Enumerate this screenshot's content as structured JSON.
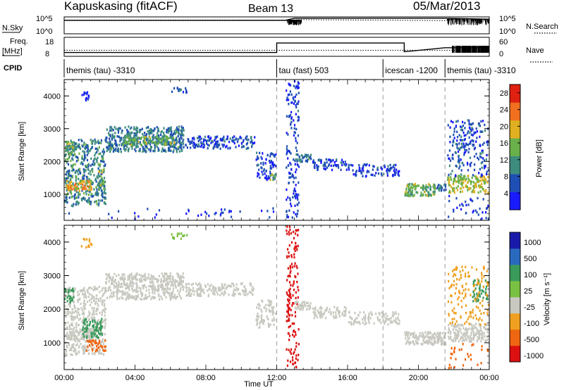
{
  "header": {
    "station": "Kapuskasing (fitACF)",
    "beam": "Beam 13",
    "date": "05/Mar/2013"
  },
  "noise_panel": {
    "left_label": "N.Sky",
    "right_label": "N.Search",
    "left_ticks": [
      "10^5",
      "10^0"
    ],
    "right_ticks": [
      "10^5",
      "10^0"
    ],
    "series": [
      {
        "name": "N.Sky",
        "style": "solid",
        "x": [
          0,
          0.25,
          12.5,
          13,
          21.5,
          24
        ],
        "y": [
          4,
          4,
          4,
          4.6,
          4.6,
          4.3
        ]
      },
      {
        "name": "N.Search",
        "style": "dotted",
        "x": [
          0,
          12.5,
          13.2,
          21.5,
          22,
          24
        ],
        "y": [
          3.9,
          3.9,
          4.2,
          3.9,
          4.4,
          4.4
        ]
      }
    ]
  },
  "freq_panel": {
    "left_label_1": "Freq.",
    "left_label_2": "[MHz]",
    "right_label": "Nave",
    "left_ticks": [
      "18",
      "8"
    ],
    "right_ticks": [
      "60",
      "0"
    ],
    "series": [
      {
        "name": "Freq.",
        "style": "solid",
        "x": [
          0,
          12,
          12,
          19.2,
          19.2,
          21.5,
          24
        ],
        "y": [
          10,
          10,
          15,
          15,
          10.4,
          12.5,
          12.5
        ]
      },
      {
        "name": "Nave",
        "style": "dotted",
        "x": [
          0,
          12,
          21.5,
          24
        ],
        "y": [
          11.2,
          11.2,
          11.2,
          11.2
        ]
      }
    ]
  },
  "cpid": {
    "label": "CPID",
    "segments": [
      {
        "start": 0,
        "end": 12,
        "label": "themis (tau) -3310"
      },
      {
        "start": 12,
        "end": 18,
        "label": "tau (fast) 503"
      },
      {
        "start": 18,
        "end": 21.5,
        "label": "icescan -1200"
      },
      {
        "start": 21.5,
        "end": 24,
        "label": "themis (tau) -3310"
      }
    ]
  },
  "chart_data": [
    {
      "type": "heatmap",
      "name": "power",
      "ylabel": "Slant Range [km]",
      "ylim": [
        200,
        4500
      ],
      "xlim": [
        0,
        24
      ],
      "yticks": [
        "1000",
        "2000",
        "3000",
        "4000"
      ],
      "colorbar": {
        "label": "Power [dB]",
        "range": [
          0,
          30
        ],
        "ticks": [
          "4",
          "8",
          "12",
          "16",
          "20",
          "24",
          "28"
        ]
      },
      "regions": [
        {
          "x0": 0.0,
          "x1": 2.4,
          "y0": 600,
          "y1": 2700,
          "value": 10,
          "density": 0.55
        },
        {
          "x0": 0.1,
          "x1": 1.6,
          "y0": 1050,
          "y1": 1450,
          "value": 20,
          "density": 0.85
        },
        {
          "x0": 0.0,
          "x1": 0.6,
          "y0": 2150,
          "y1": 2650,
          "value": 14,
          "density": 0.7
        },
        {
          "x0": 1.9,
          "x1": 2.3,
          "y0": 1100,
          "y1": 1800,
          "value": 14,
          "density": 0.7
        },
        {
          "x0": 2.3,
          "x1": 6.8,
          "y0": 2250,
          "y1": 3100,
          "value": 9,
          "density": 0.75
        },
        {
          "x0": 3.3,
          "x1": 6.3,
          "y0": 2450,
          "y1": 2800,
          "value": 14,
          "density": 0.8
        },
        {
          "x0": 6.8,
          "x1": 10.8,
          "y0": 2350,
          "y1": 2800,
          "value": 6,
          "density": 0.55
        },
        {
          "x0": 10.8,
          "x1": 12.0,
          "y0": 1400,
          "y1": 2300,
          "value": 5,
          "density": 0.45
        },
        {
          "x0": 11.6,
          "x1": 12.0,
          "y0": 1400,
          "y1": 1650,
          "value": 14,
          "density": 0.7
        },
        {
          "x0": 0.9,
          "x1": 1.6,
          "y0": 3800,
          "y1": 4150,
          "value": 4,
          "density": 0.35
        },
        {
          "x0": 6.0,
          "x1": 7.0,
          "y0": 4050,
          "y1": 4300,
          "value": 5,
          "density": 0.4
        },
        {
          "x0": 12.5,
          "x1": 13.3,
          "y0": 200,
          "y1": 4500,
          "value": 5,
          "density": 0.28
        },
        {
          "x0": 13.0,
          "x1": 14.0,
          "y0": 1950,
          "y1": 2250,
          "value": 9,
          "density": 0.8
        },
        {
          "x0": 14.0,
          "x1": 16.0,
          "y0": 1700,
          "y1": 2100,
          "value": 5,
          "density": 0.55
        },
        {
          "x0": 16.0,
          "x1": 19.0,
          "y0": 1500,
          "y1": 1950,
          "value": 5,
          "density": 0.45
        },
        {
          "x0": 19.2,
          "x1": 21.0,
          "y0": 900,
          "y1": 1350,
          "value": 14,
          "density": 0.9
        },
        {
          "x0": 21.0,
          "x1": 21.6,
          "y0": 1050,
          "y1": 1350,
          "value": 9,
          "density": 0.8
        },
        {
          "x0": 21.6,
          "x1": 24.0,
          "y0": 1000,
          "y1": 1600,
          "value": 17,
          "density": 0.7
        },
        {
          "x0": 21.6,
          "x1": 24.0,
          "y0": 1500,
          "y1": 3300,
          "value": 6,
          "density": 0.3
        },
        {
          "x0": 21.6,
          "x1": 24.0,
          "y0": 200,
          "y1": 1000,
          "value": 4,
          "density": 0.12
        },
        {
          "x0": 0.0,
          "x1": 12.0,
          "y0": 200,
          "y1": 600,
          "value": 4,
          "density": 0.05
        }
      ]
    },
    {
      "type": "heatmap",
      "name": "velocity",
      "ylabel": "Slant Range [km]",
      "xlabel": "Time UT",
      "ylim": [
        200,
        4500
      ],
      "xlim": [
        0,
        24
      ],
      "yticks": [
        "1000",
        "2000",
        "3000",
        "4000"
      ],
      "xticks": [
        "00:00",
        "04:00",
        "08:00",
        "12:00",
        "16:00",
        "20:00",
        "00:00"
      ],
      "colorbar": {
        "label": "Velocity [m s⁻¹]",
        "ticks": [
          "1000",
          "500",
          "100",
          "25",
          "-25",
          "-100",
          "-500",
          "-1000"
        ]
      },
      "regions": [
        {
          "x0": 0.0,
          "x1": 2.4,
          "y0": 600,
          "y1": 2700,
          "value": 0,
          "density": 0.5
        },
        {
          "x0": 0.1,
          "x1": 1.6,
          "y0": 1050,
          "y1": 1450,
          "value": 0,
          "density": 0.8
        },
        {
          "x0": 0.0,
          "x1": 0.6,
          "y0": 2150,
          "y1": 2650,
          "value": 150,
          "density": 0.6
        },
        {
          "x0": 1.0,
          "x1": 2.2,
          "y0": 1100,
          "y1": 1750,
          "value": 200,
          "density": 0.6
        },
        {
          "x0": 1.2,
          "x1": 2.4,
          "y0": 700,
          "y1": 1100,
          "value": -200,
          "density": 0.5
        },
        {
          "x0": 2.3,
          "x1": 6.8,
          "y0": 2250,
          "y1": 3100,
          "value": 0,
          "density": 0.75
        },
        {
          "x0": 6.8,
          "x1": 10.8,
          "y0": 2350,
          "y1": 2800,
          "value": 0,
          "density": 0.55
        },
        {
          "x0": 10.8,
          "x1": 12.0,
          "y0": 1400,
          "y1": 2300,
          "value": 0,
          "density": 0.45
        },
        {
          "x0": 0.9,
          "x1": 1.6,
          "y0": 3800,
          "y1": 4150,
          "value": -60,
          "density": 0.35
        },
        {
          "x0": 6.0,
          "x1": 7.0,
          "y0": 4050,
          "y1": 4300,
          "value": 60,
          "density": 0.35
        },
        {
          "x0": 12.5,
          "x1": 13.3,
          "y0": 200,
          "y1": 4500,
          "value": -600,
          "density": 0.28
        },
        {
          "x0": 13.0,
          "x1": 14.0,
          "y0": 1950,
          "y1": 2250,
          "value": 0,
          "density": 0.8
        },
        {
          "x0": 14.0,
          "x1": 16.0,
          "y0": 1700,
          "y1": 2100,
          "value": 0,
          "density": 0.55
        },
        {
          "x0": 16.0,
          "x1": 19.0,
          "y0": 1500,
          "y1": 1950,
          "value": 0,
          "density": 0.45
        },
        {
          "x0": 19.2,
          "x1": 21.6,
          "y0": 900,
          "y1": 1350,
          "value": 0,
          "density": 0.9
        },
        {
          "x0": 21.6,
          "x1": 24.0,
          "y0": 1000,
          "y1": 1600,
          "value": 0,
          "density": 0.7
        },
        {
          "x0": 23.0,
          "x1": 24.0,
          "y0": 2200,
          "y1": 2900,
          "value": 150,
          "density": 0.45
        },
        {
          "x0": 21.6,
          "x1": 24.0,
          "y0": 1500,
          "y1": 3300,
          "value": -60,
          "density": 0.2
        },
        {
          "x0": 21.6,
          "x1": 24.0,
          "y0": 200,
          "y1": 1000,
          "value": -200,
          "density": 0.1
        }
      ]
    }
  ],
  "colors": {
    "power": [
      "#1a1aff",
      "#1f4fb4",
      "#3e8c7e",
      "#6ab04a",
      "#e0b020",
      "#f07020",
      "#e02010"
    ],
    "velocity": [
      "#dd1111",
      "#ee6611",
      "#f0a020",
      "#c8c8c0",
      "#7ac043",
      "#3a9a5a",
      "#2a6abe",
      "#1a1aaa"
    ]
  }
}
